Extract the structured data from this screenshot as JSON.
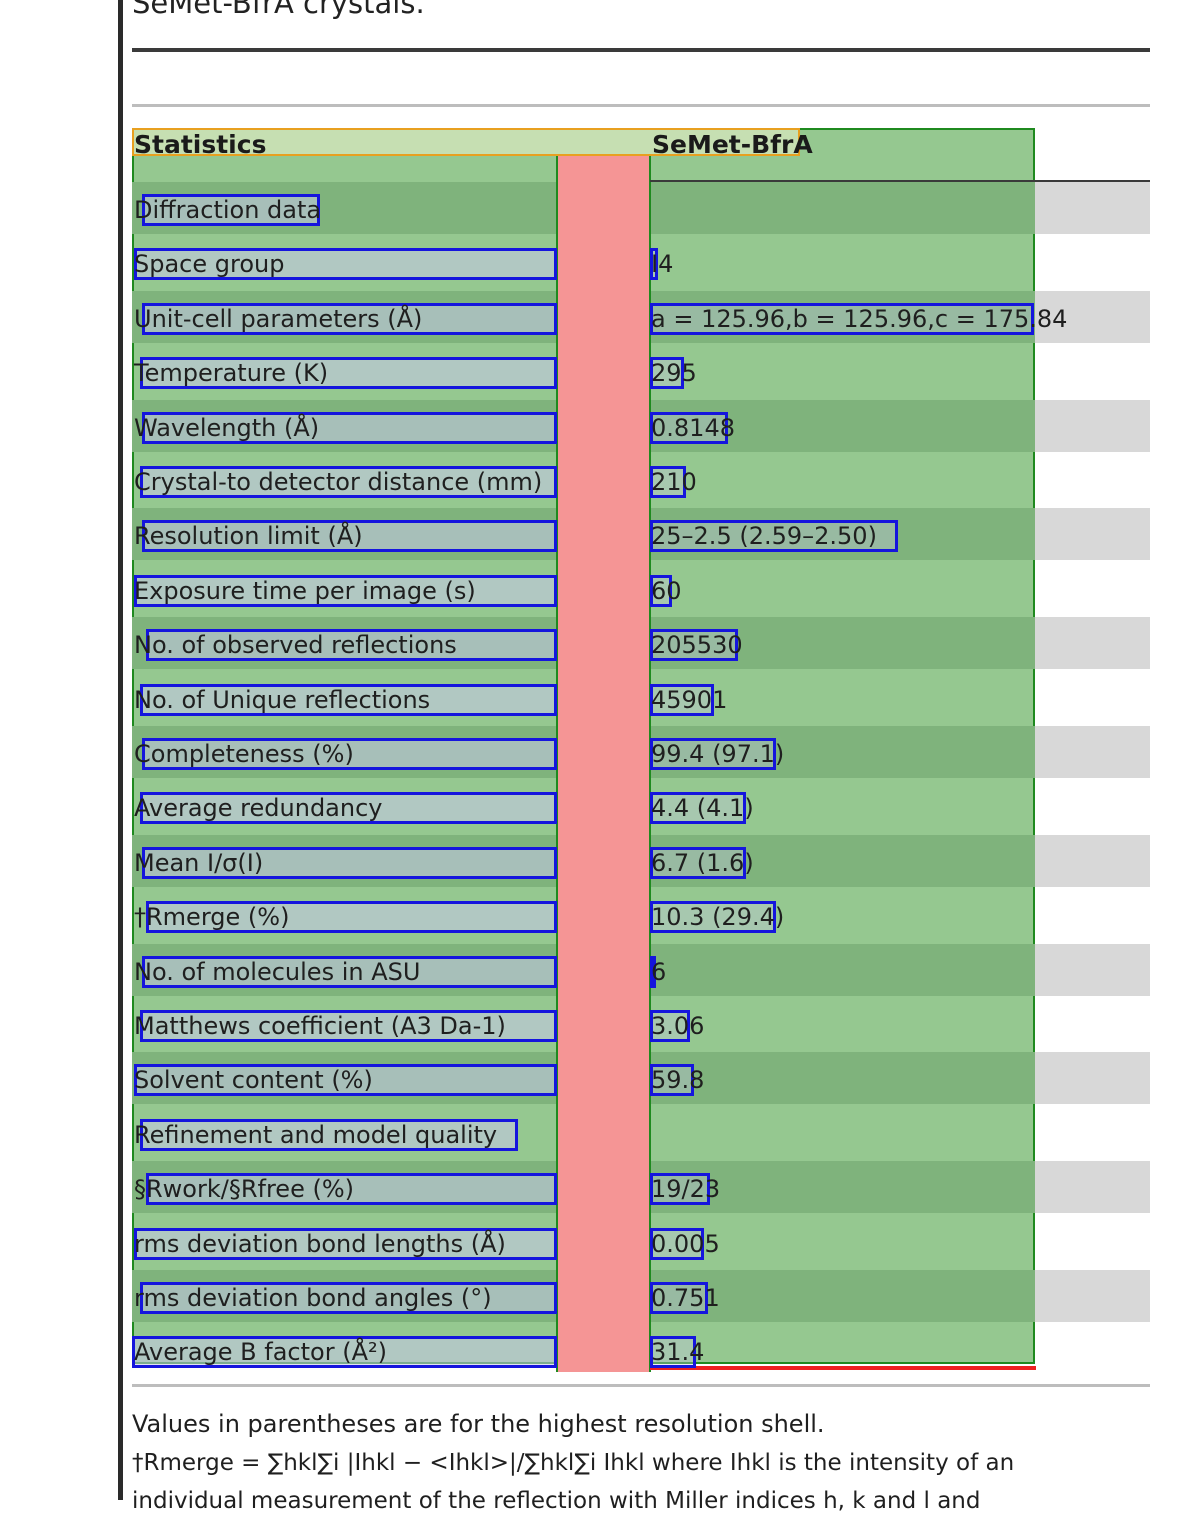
{
  "caption": "SeMet-BfrA crystals.",
  "table": {
    "col_headers": [
      "Statistics",
      "SeMet-BfrA"
    ],
    "rows": [
      {
        "label": "Diffraction data",
        "value": ""
      },
      {
        "label": "Space group",
        "value": "I4"
      },
      {
        "label": "Unit-cell parameters (Å)",
        "value": "a = 125.96,b = 125.96,c = 175.84"
      },
      {
        "label": "Temperature (K)",
        "value": "295"
      },
      {
        "label": "Wavelength (Å)",
        "value": "0.8148"
      },
      {
        "label": "Crystal-to detector distance (mm)",
        "value": "210"
      },
      {
        "label": "Resolution limit (Å)",
        "value": "25–2.5 (2.59–2.50)"
      },
      {
        "label": "Exposure time per image (s)",
        "value": "60"
      },
      {
        "label": "No. of observed reflections",
        "value": "205530"
      },
      {
        "label": "No. of Unique reflections",
        "value": "45901"
      },
      {
        "label": "Completeness (%)",
        "value": "99.4 (97.1)"
      },
      {
        "label": "Average redundancy",
        "value": "4.4 (4.1)"
      },
      {
        "label": "Mean I/σ(I)",
        "value": "6.7 (1.6)"
      },
      {
        "label": "†Rmerge (%)",
        "value": "10.3 (29.4)"
      },
      {
        "label": "No. of molecules in ASU",
        "value": "6"
      },
      {
        "label": "Matthews coefficient (A3 Da-1)",
        "value": "3.06"
      },
      {
        "label": "Solvent content (%)",
        "value": "59.8"
      },
      {
        "label": "Refinement and model quality",
        "value": ""
      },
      {
        "label": "§Rwork/§Rfree (%)",
        "value": "19/23"
      },
      {
        "label": "rms deviation bond lengths (Å)",
        "value": "0.005"
      },
      {
        "label": "rms deviation bond angles (°)",
        "value": "0.751"
      },
      {
        "label": "Average B factor (Å²)",
        "value": "31.4"
      }
    ]
  },
  "footnotes": {
    "line1": "Values in parentheses are for the highest resolution shell.",
    "line2": "†Rmerge = ∑hkl∑i |Ihkl − <Ihkl>|/∑hkl∑i Ihkl where Ihkl is the intensity of an",
    "line3": "individual measurement of the reflection with Miller indices h, k and l and"
  },
  "colors": {
    "panel_green": "#95c890",
    "panel_border": "#1f8a1f",
    "box_blue": "#1515dd",
    "column_pink": "#f59595",
    "header_orange": "#e8a020"
  }
}
